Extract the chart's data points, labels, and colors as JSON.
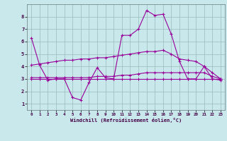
{
  "x": [
    0,
    1,
    2,
    3,
    4,
    5,
    6,
    7,
    8,
    9,
    10,
    11,
    12,
    13,
    14,
    15,
    16,
    17,
    18,
    19,
    20,
    21,
    22,
    23
  ],
  "line_volatile": [
    6.3,
    4.1,
    2.9,
    3.0,
    3.0,
    1.5,
    1.3,
    2.7,
    3.9,
    3.1,
    3.0,
    6.5,
    6.5,
    7.0,
    8.5,
    8.1,
    8.2,
    6.6,
    4.4,
    3.0,
    3.0,
    4.0,
    3.0,
    2.9
  ],
  "line_upper": [
    4.1,
    4.2,
    4.3,
    4.4,
    4.5,
    4.5,
    4.6,
    4.6,
    4.7,
    4.7,
    4.8,
    4.9,
    5.0,
    5.1,
    5.2,
    5.2,
    5.3,
    5.0,
    4.6,
    4.5,
    4.4,
    4.0,
    3.5,
    3.0
  ],
  "line_mid": [
    3.1,
    3.1,
    3.1,
    3.1,
    3.1,
    3.1,
    3.1,
    3.1,
    3.2,
    3.2,
    3.2,
    3.3,
    3.3,
    3.4,
    3.5,
    3.5,
    3.5,
    3.5,
    3.5,
    3.5,
    3.5,
    3.5,
    3.2,
    3.0
  ],
  "line_lower": [
    3.0,
    3.0,
    3.0,
    3.0,
    3.0,
    3.0,
    3.0,
    3.0,
    3.0,
    3.0,
    3.0,
    3.0,
    3.0,
    3.0,
    3.0,
    3.0,
    3.0,
    3.0,
    3.0,
    3.0,
    3.0,
    3.0,
    3.0,
    3.0
  ],
  "color": "#990099",
  "bg_color": "#c8e8ec",
  "grid_color": "#99bbbb",
  "xlabel": "Windchill (Refroidissement éolien,°C)",
  "ylim": [
    0.5,
    9.0
  ],
  "xlim": [
    -0.5,
    23.5
  ],
  "yticks": [
    1,
    2,
    3,
    4,
    5,
    6,
    7,
    8
  ],
  "xticks": [
    0,
    1,
    2,
    3,
    4,
    5,
    6,
    7,
    8,
    9,
    10,
    11,
    12,
    13,
    14,
    15,
    16,
    17,
    18,
    19,
    20,
    21,
    22,
    23
  ]
}
